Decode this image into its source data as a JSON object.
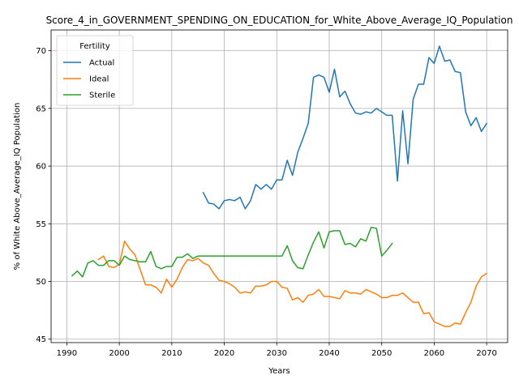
{
  "chart_data": {
    "type": "line",
    "title": "Score_4_in_GOVERNMENT_SPENDING_ON_EDUCATION_for_White_Above_Average_IQ_Population",
    "xlabel": "Years",
    "ylabel": "% of White Above_Average_IQ Population",
    "xlim": [
      1987,
      2074
    ],
    "ylim": [
      44.7,
      71.8
    ],
    "x_ticks": [
      1990,
      2000,
      2010,
      2020,
      2030,
      2040,
      2050,
      2060,
      2070
    ],
    "y_ticks": [
      45,
      50,
      55,
      60,
      65,
      70
    ],
    "grid": true,
    "legend": {
      "title": "Fertility",
      "placement": "upper-left"
    },
    "series": [
      {
        "name": "Actual",
        "color": "#1f77b4",
        "x": [
          2016,
          2017,
          2018,
          2019,
          2020,
          2021,
          2022,
          2023,
          2024,
          2025,
          2026,
          2027,
          2028,
          2029,
          2030,
          2031,
          2032,
          2033,
          2034,
          2035,
          2036,
          2037,
          2038,
          2039,
          2040,
          2041,
          2042,
          2043,
          2044,
          2045,
          2046,
          2047,
          2048,
          2049,
          2050,
          2051,
          2052,
          2053,
          2054,
          2055,
          2056,
          2057,
          2058,
          2059,
          2060,
          2061,
          2062,
          2063,
          2064,
          2065,
          2066,
          2067,
          2068,
          2069,
          2070
        ],
        "y": [
          57.7,
          56.8,
          56.7,
          56.3,
          57.0,
          57.1,
          57.0,
          57.3,
          56.3,
          57.0,
          58.4,
          58.0,
          58.4,
          58.0,
          58.8,
          58.8,
          60.5,
          59.2,
          61.2,
          62.4,
          63.7,
          67.7,
          67.9,
          67.7,
          66.4,
          68.4,
          66.0,
          66.5,
          65.4,
          64.6,
          64.5,
          64.7,
          64.6,
          65.0,
          64.7,
          64.4,
          64.4,
          58.7,
          64.8,
          60.2,
          65.8,
          67.1,
          67.1,
          69.4,
          68.9,
          70.4,
          69.1,
          69.2,
          68.2,
          68.1,
          64.7,
          63.5,
          64.2,
          63.0,
          63.7
        ]
      },
      {
        "name": "Ideal",
        "color": "#ff7f0e",
        "x": [
          1996,
          1997,
          1998,
          1999,
          2000,
          2001,
          2002,
          2003,
          2004,
          2005,
          2006,
          2007,
          2008,
          2009,
          2010,
          2011,
          2012,
          2013,
          2014,
          2015,
          2016,
          2017,
          2018,
          2019,
          2020,
          2021,
          2022,
          2023,
          2024,
          2025,
          2026,
          2027,
          2028,
          2029,
          2030,
          2031,
          2032,
          2033,
          2034,
          2035,
          2036,
          2037,
          2038,
          2039,
          2040,
          2041,
          2042,
          2043,
          2044,
          2045,
          2046,
          2047,
          2048,
          2049,
          2050,
          2051,
          2052,
          2053,
          2054,
          2055,
          2056,
          2057,
          2058,
          2059,
          2060,
          2061,
          2062,
          2063,
          2064,
          2065,
          2066,
          2067,
          2068,
          2069,
          2070
        ],
        "y": [
          51.9,
          52.2,
          51.3,
          51.2,
          51.5,
          53.5,
          52.8,
          52.3,
          51.0,
          49.7,
          49.7,
          49.5,
          49.0,
          50.2,
          49.5,
          50.2,
          51.2,
          51.9,
          51.8,
          52.0,
          51.6,
          51.4,
          50.7,
          50.1,
          50.0,
          49.8,
          49.5,
          49.0,
          49.1,
          49.0,
          49.6,
          49.6,
          49.7,
          50.0,
          50.0,
          49.5,
          49.4,
          48.4,
          48.6,
          48.2,
          48.8,
          48.9,
          49.3,
          48.7,
          48.7,
          48.6,
          48.5,
          49.2,
          49.0,
          49.0,
          48.9,
          49.3,
          49.1,
          48.9,
          48.6,
          48.6,
          48.8,
          48.8,
          49.0,
          48.6,
          48.2,
          48.2,
          47.2,
          47.3,
          46.5,
          46.3,
          46.1,
          46.1,
          46.4,
          46.3,
          47.3,
          48.2,
          49.6,
          50.4,
          50.7
        ]
      },
      {
        "name": "Sterile",
        "color": "#2ca02c",
        "x": [
          1991,
          1992,
          1993,
          1994,
          1995,
          1996,
          1997,
          1998,
          1999,
          2000,
          2001,
          2002,
          2003,
          2004,
          2005,
          2006,
          2007,
          2008,
          2009,
          2010,
          2011,
          2012,
          2013,
          2014,
          2015,
          2016,
          2017,
          2018,
          2019,
          2020,
          2021,
          2022,
          2023,
          2024,
          2025,
          2026,
          2027,
          2028,
          2029,
          2030,
          2031,
          2032,
          2033,
          2034,
          2035,
          2036,
          2037,
          2038,
          2039,
          2040,
          2041,
          2042,
          2043,
          2044,
          2045,
          2046,
          2047,
          2048,
          2049,
          2050,
          2051,
          2052
        ],
        "y": [
          50.5,
          50.9,
          50.4,
          51.6,
          51.8,
          51.4,
          51.4,
          51.8,
          51.8,
          51.4,
          52.2,
          51.9,
          51.8,
          51.7,
          51.7,
          52.6,
          51.3,
          51.1,
          51.3,
          51.3,
          52.1,
          52.1,
          52.4,
          52.0,
          52.2,
          52.2,
          52.2,
          52.2,
          52.2,
          52.2,
          52.2,
          52.2,
          52.2,
          52.2,
          52.2,
          52.2,
          52.2,
          52.2,
          52.2,
          52.2,
          52.2,
          53.1,
          51.8,
          51.2,
          51.1,
          52.3,
          53.4,
          54.3,
          52.9,
          54.3,
          54.4,
          54.4,
          53.2,
          53.3,
          53.0,
          53.7,
          53.5,
          54.7,
          54.6,
          52.2,
          52.7,
          53.3
        ]
      }
    ]
  }
}
